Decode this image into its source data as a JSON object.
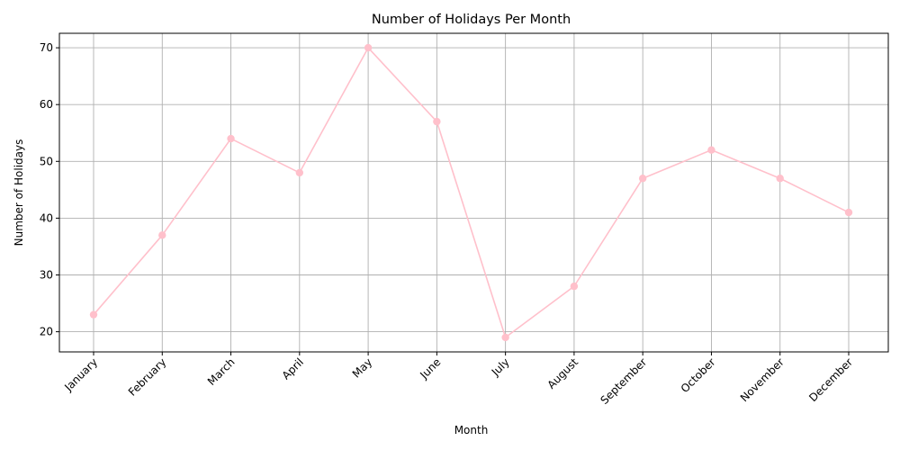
{
  "chart_data": {
    "type": "line",
    "title": "Number of Holidays Per Month",
    "xlabel": "Month",
    "ylabel": "Number of Holidays",
    "categories": [
      "January",
      "February",
      "March",
      "April",
      "May",
      "June",
      "July",
      "August",
      "September",
      "October",
      "November",
      "December"
    ],
    "series": [
      {
        "values": [
          23,
          37,
          54,
          48,
          70,
          57,
          19,
          28,
          47,
          52,
          47,
          41
        ],
        "color": "#ffc0cb",
        "marker": "circle"
      }
    ],
    "ylim": [
      16.45,
      72.55
    ],
    "yticks": [
      20,
      30,
      40,
      50,
      60,
      70
    ],
    "grid": true,
    "x_tick_rotation_deg": 45
  }
}
